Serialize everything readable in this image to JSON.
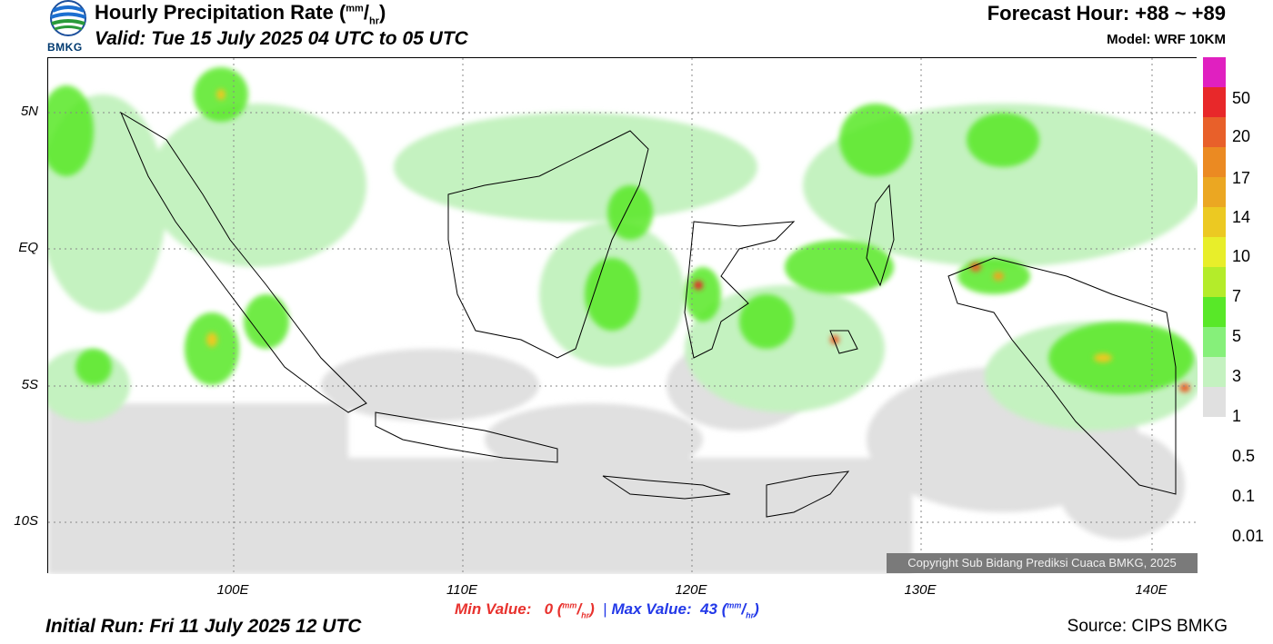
{
  "header": {
    "title_main": "Hourly Precipitation Rate (",
    "title_unit_top": "mm",
    "title_unit_bottom": "hr",
    "title_close": ")",
    "valid": "Valid: Tue 15 July 2025 04 UTC to 05 UTC",
    "forecast_hour": "Forecast Hour: +88 ~ +89",
    "model": "Model: WRF 10KM",
    "logo_text": "BMKG"
  },
  "axes": {
    "y_labels": [
      "5N",
      "EQ",
      "5S",
      "10S"
    ],
    "x_labels": [
      "100E",
      "110E",
      "120E",
      "130E",
      "140E"
    ]
  },
  "legend": {
    "labels": [
      "50",
      "20",
      "17",
      "14",
      "10",
      "7",
      "5",
      "3",
      "1",
      "0.5",
      "0.1",
      "0.01"
    ],
    "colors": [
      "#e020c0",
      "#e8282a",
      "#e8602a",
      "#eb8a22",
      "#eba722",
      "#ecc922",
      "#e8ee2a",
      "#b4ec2a",
      "#58e828",
      "#86f07a",
      "#c4f2c0",
      "#e0e0e0"
    ]
  },
  "stats": {
    "min_label": "Min Value:",
    "min_value": "0",
    "max_label": "Max Value:",
    "max_value": "43",
    "unit_top": "mm",
    "unit_bottom": "hr",
    "separator": "|"
  },
  "footer": {
    "initial_run": "Initial Run: Fri 11 July 2025 12 UTC",
    "source": "Source: CIPS BMKG",
    "copyright": "Copyright Sub Bidang Prediksi Cuaca BMKG, 2025"
  }
}
